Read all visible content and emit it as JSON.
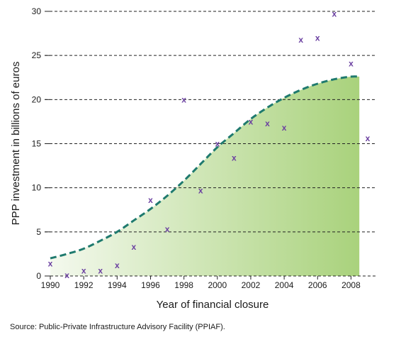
{
  "colors": {
    "marker": "#6a3fa0",
    "trend_line": "#1f7a6e",
    "fill_start": "#f4f9ee",
    "fill_end": "#a9d27c",
    "grid": "#222222"
  },
  "source": "Source: Public-Private Infrastructure Advisory Facility (PPIAF).",
  "chart_data": {
    "type": "scatter",
    "title": "",
    "xlabel": "Year of financial closure",
    "ylabel": "PPP investment in billions of euros",
    "xlim": [
      1990,
      2009
    ],
    "ylim": [
      0,
      30
    ],
    "grid": "horizontal dashed",
    "x_ticks": [
      "1990",
      "1992",
      "1994",
      "1996",
      "1998",
      "2000",
      "2002",
      "2004",
      "2006",
      "2008"
    ],
    "y_ticks": [
      "0",
      "5",
      "10",
      "15",
      "20",
      "25",
      "30"
    ],
    "marker_symbol": "x",
    "points": {
      "x": [
        1990,
        1991,
        1992,
        1993,
        1994,
        1995,
        1996,
        1997,
        1998,
        1999,
        2000,
        2001,
        2002,
        2003,
        2004,
        2005,
        2006,
        2007,
        2008,
        2009
      ],
      "y": [
        1.4,
        0.1,
        0.6,
        0.6,
        1.2,
        3.3,
        8.6,
        5.3,
        20.0,
        9.7,
        15.0,
        13.4,
        17.5,
        17.3,
        16.8,
        26.8,
        27.0,
        29.7,
        24.1,
        15.6
      ]
    },
    "trend": {
      "x": [
        1990,
        1991,
        1992,
        1993,
        1994,
        1995,
        1996,
        1997,
        1998,
        1999,
        2000,
        2001,
        2002,
        2003,
        2004,
        2005,
        2006,
        2007,
        2008,
        2008.5
      ],
      "y": [
        2.0,
        2.5,
        3.1,
        4.0,
        5.0,
        6.3,
        7.6,
        9.1,
        10.8,
        12.7,
        14.6,
        16.2,
        17.8,
        19.1,
        20.2,
        21.1,
        21.8,
        22.3,
        22.6,
        22.6
      ]
    }
  }
}
